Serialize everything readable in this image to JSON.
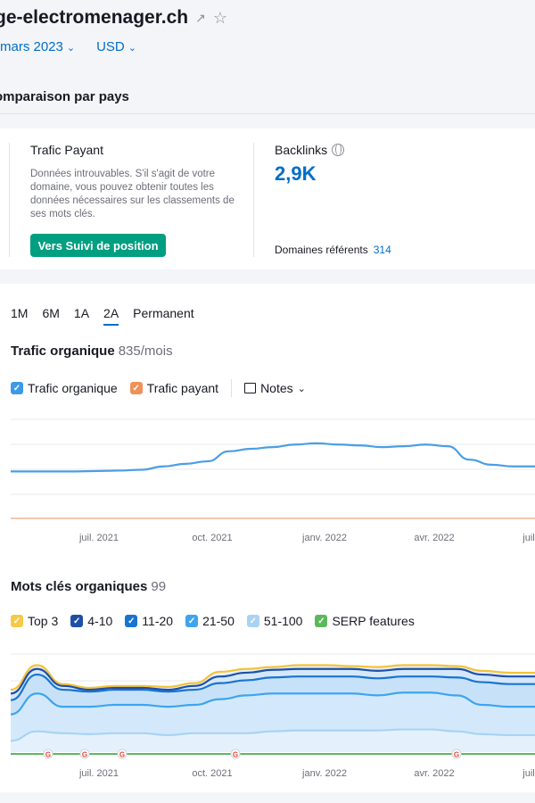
{
  "header": {
    "domain": "ge-electromenager.ch",
    "date": "mars 2023",
    "currency": "USD"
  },
  "comparison": {
    "title": "omparaison par pays"
  },
  "paid": {
    "title": "Trafic Payant",
    "description": "Données introuvables. S'il s'agit de votre domaine, vous pouvez obtenir toutes les données nécessaires sur les classements de ses mots clés.",
    "button": "Vers Suivi de position"
  },
  "backlinks": {
    "title": "Backlinks",
    "value": "2,9K",
    "ref_label": "Domaines référents",
    "ref_value": "314"
  },
  "periods": [
    "1M",
    "6M",
    "1A",
    "2A",
    "Permanent"
  ],
  "active_period": "2A",
  "traffic_chart": {
    "title": "Trafic organique",
    "value": "835/mois",
    "legend": [
      {
        "label": "Trafic organique",
        "color": "#3c9ae8"
      },
      {
        "label": "Trafic payant",
        "color": "#f0915a"
      }
    ],
    "notes_label": "Notes"
  },
  "keywords_chart": {
    "title": "Mots clés organiques",
    "value": "99",
    "legend": [
      {
        "label": "Top 3",
        "color": "#f7c948"
      },
      {
        "label": "4-10",
        "color": "#1f4fa6"
      },
      {
        "label": "11-20",
        "color": "#1a73d2"
      },
      {
        "label": "21-50",
        "color": "#3fa4ee"
      },
      {
        "label": "51-100",
        "color": "#a8d3f5"
      },
      {
        "label": "SERP features",
        "color": "#5cb85c"
      }
    ]
  },
  "chart_data": [
    {
      "type": "line",
      "title": "Trafic organique",
      "x_ticks": [
        "juil. 2021",
        "oct. 2021",
        "janv. 2022",
        "avr. 2022",
        "juil"
      ],
      "series": [
        {
          "name": "Trafic organique",
          "color": "#4a9ee6",
          "values": [
            560,
            560,
            560,
            560,
            565,
            570,
            580,
            620,
            650,
            680,
            800,
            830,
            850,
            880,
            895,
            880,
            870,
            850,
            860,
            880,
            860,
            700,
            640,
            620,
            620
          ]
        },
        {
          "name": "Trafic payant",
          "color": "#f0915a",
          "values": [
            0,
            0,
            0,
            0,
            0,
            0,
            0,
            0,
            0,
            0,
            0,
            0,
            0,
            0,
            0,
            0,
            0,
            0,
            0,
            0,
            0,
            0,
            0,
            0,
            0
          ]
        }
      ]
    },
    {
      "type": "area",
      "title": "Mots clés organiques",
      "x_ticks": [
        "juil. 2021",
        "oct. 2021",
        "janv. 2022",
        "avr. 2022",
        "juil"
      ],
      "series": [
        {
          "name": "Top 3",
          "color": "#f2c33a",
          "values": [
            66,
            92,
            72,
            68,
            70,
            70,
            69,
            73,
            85,
            88,
            90,
            92,
            92,
            91,
            90,
            92,
            92,
            91,
            86,
            84,
            84
          ]
        },
        {
          "name": "4-10",
          "color": "#1f4fa6",
          "values": [
            62,
            88,
            70,
            66,
            68,
            68,
            66,
            70,
            80,
            84,
            87,
            88,
            88,
            88,
            86,
            88,
            88,
            88,
            82,
            80,
            80
          ]
        },
        {
          "name": "11-20",
          "color": "#1a73d2",
          "values": [
            55,
            82,
            66,
            64,
            66,
            66,
            64,
            66,
            73,
            76,
            79,
            80,
            80,
            80,
            78,
            80,
            80,
            79,
            74,
            72,
            72
          ]
        },
        {
          "name": "21-50",
          "color": "#3fa4ee",
          "values": [
            40,
            62,
            48,
            48,
            50,
            50,
            48,
            50,
            56,
            60,
            62,
            62,
            62,
            62,
            60,
            63,
            63,
            60,
            50,
            48,
            48
          ]
        },
        {
          "name": "51-100",
          "color": "#a8d3f5",
          "values": [
            12,
            22,
            20,
            19,
            20,
            20,
            18,
            20,
            20,
            20,
            22,
            23,
            23,
            23,
            23,
            24,
            24,
            22,
            19,
            18,
            18
          ]
        }
      ]
    }
  ]
}
